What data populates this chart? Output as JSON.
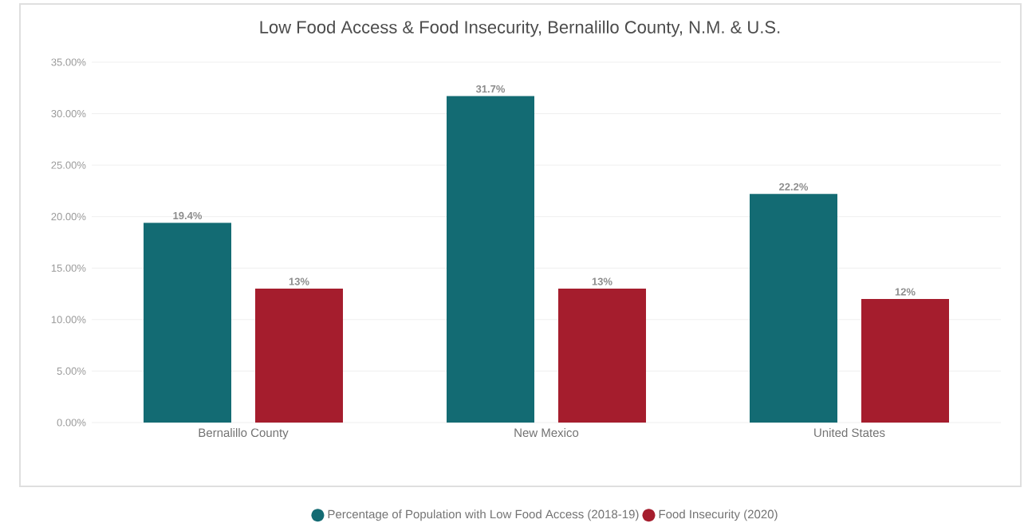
{
  "chart_data": {
    "type": "bar",
    "title": "Low Food Access & Food Insecurity, Bernalillo County, N.M. & U.S.",
    "categories": [
      "Bernalillo County",
      "New Mexico",
      "United States"
    ],
    "series": [
      {
        "name": "Percentage of Population with Low Food Access (2018-19)",
        "color": "#136b73",
        "values": [
          19.4,
          31.7,
          22.2
        ],
        "value_labels": [
          "19.4%",
          "31.7%",
          "22.2%"
        ]
      },
      {
        "name": "Food Insecurity (2020)",
        "color": "#a51d2d",
        "values": [
          13,
          13,
          12
        ],
        "value_labels": [
          "13%",
          "13%",
          "12%"
        ]
      }
    ],
    "ylim": [
      0,
      35
    ],
    "yticks": [
      {
        "value": 0,
        "label": "0.00%"
      },
      {
        "value": 5,
        "label": "5.00%"
      },
      {
        "value": 10,
        "label": "10.00%"
      },
      {
        "value": 15,
        "label": "15.00%"
      },
      {
        "value": 20,
        "label": "20.00%"
      },
      {
        "value": 25,
        "label": "25.00%"
      },
      {
        "value": 30,
        "label": "30.00%"
      },
      {
        "value": 35,
        "label": "35.00%"
      }
    ],
    "grid": "y",
    "legend": "bottom"
  }
}
